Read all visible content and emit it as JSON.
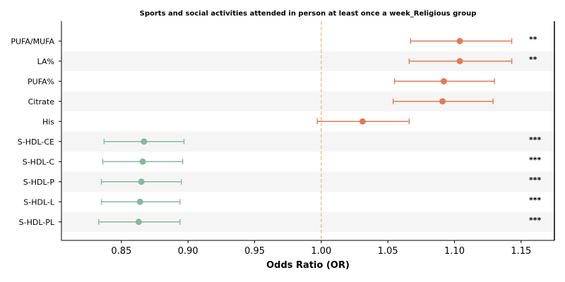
{
  "chart_data": {
    "type": "forest",
    "title": "Sports and social activities attended in person at least once a week_Religious group",
    "xlabel": "Odds Ratio (OR)",
    "xlim": [
      0.805,
      1.175
    ],
    "xticks": [
      0.85,
      0.9,
      0.95,
      1.0,
      1.05,
      1.1,
      1.15
    ],
    "xtick_labels": [
      "0.85",
      "0.90",
      "0.95",
      "1.00",
      "1.05",
      "1.10",
      "1.15"
    ],
    "reference_line": 1.0,
    "colors": {
      "positive": "#e07b5a",
      "negative": "#86b8a0",
      "reference": "#f2c48a",
      "band": "#f5f5f5"
    },
    "rows": [
      {
        "label": "PUFA/MUFA",
        "or": 1.104,
        "lo": 1.067,
        "hi": 1.143,
        "sig": "**"
      },
      {
        "label": "LA%",
        "or": 1.104,
        "lo": 1.066,
        "hi": 1.143,
        "sig": "**"
      },
      {
        "label": "PUFA%",
        "or": 1.092,
        "lo": 1.055,
        "hi": 1.13,
        "sig": ""
      },
      {
        "label": "Citrate",
        "or": 1.091,
        "lo": 1.054,
        "hi": 1.129,
        "sig": ""
      },
      {
        "label": "His",
        "or": 1.031,
        "lo": 0.997,
        "hi": 1.066,
        "sig": ""
      },
      {
        "label": "S-HDL-CE",
        "or": 0.867,
        "lo": 0.837,
        "hi": 0.897,
        "sig": "***"
      },
      {
        "label": "S-HDL-C",
        "or": 0.866,
        "lo": 0.836,
        "hi": 0.896,
        "sig": "***"
      },
      {
        "label": "S-HDL-P",
        "or": 0.865,
        "lo": 0.835,
        "hi": 0.895,
        "sig": "***"
      },
      {
        "label": "S-HDL-L",
        "or": 0.864,
        "lo": 0.835,
        "hi": 0.894,
        "sig": "***"
      },
      {
        "label": "S-HDL-PL",
        "or": 0.863,
        "lo": 0.833,
        "hi": 0.894,
        "sig": "***"
      }
    ]
  }
}
